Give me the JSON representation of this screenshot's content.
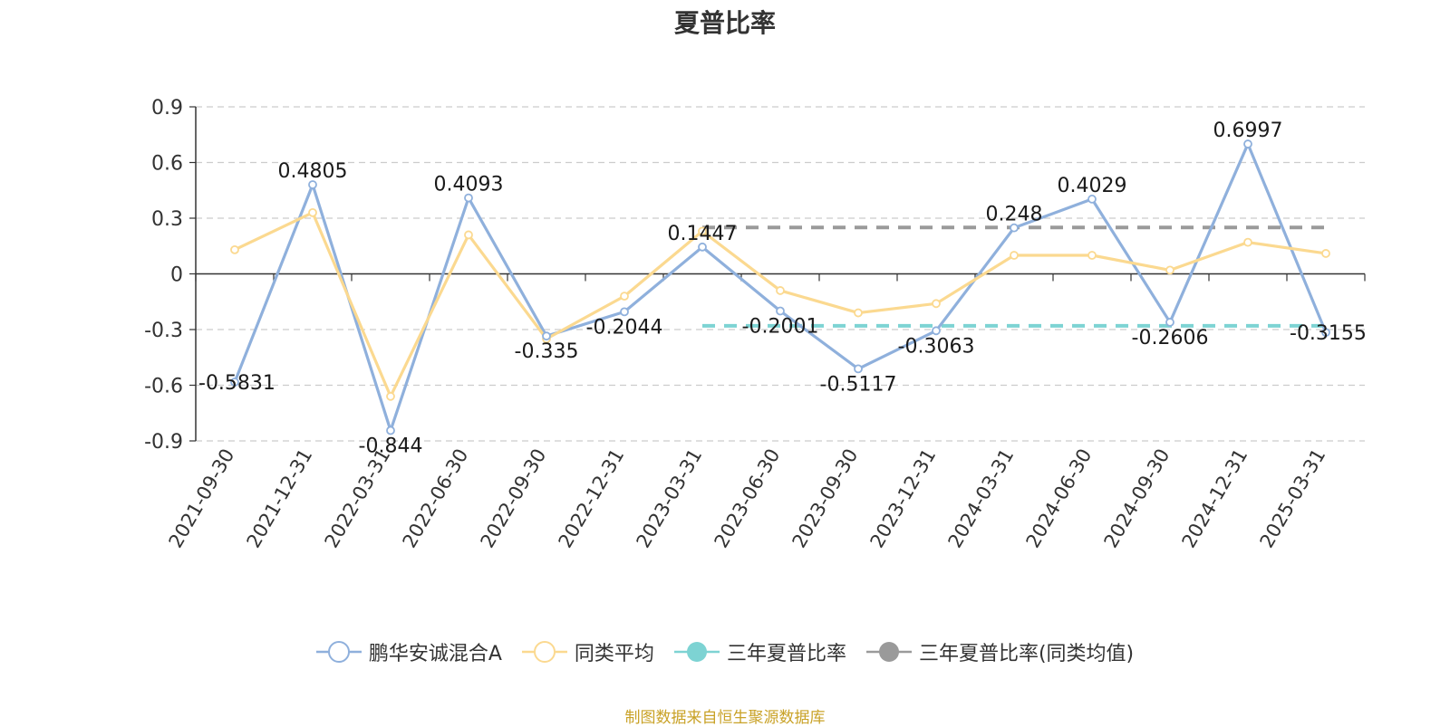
{
  "title": "夏普比率",
  "source_note": "制图数据来自恒生聚源数据库",
  "legend": [
    {
      "label": "鹏华安诚混合A",
      "color": "#8fb0dc",
      "marker": "hollow-circle"
    },
    {
      "label": "同类平均",
      "color": "#fbd990",
      "marker": "hollow-circle"
    },
    {
      "label": "三年夏普比率",
      "color": "#7dd3d3",
      "marker": "filled-circle"
    },
    {
      "label": "三年夏普比率(同类均值)",
      "color": "#9a9a9a",
      "marker": "filled-circle"
    }
  ],
  "chart_data": {
    "type": "line",
    "title": "夏普比率",
    "xlabel": "",
    "ylabel": "",
    "ylim": [
      -0.9,
      0.9
    ],
    "yticks": [
      "-0.9",
      "-0.6",
      "-0.3",
      "0",
      "0.3",
      "0.6",
      "0.9"
    ],
    "ytick_values": [
      -0.9,
      -0.6,
      -0.3,
      0,
      0.3,
      0.6,
      0.9
    ],
    "grid": true,
    "legend_position": "bottom",
    "categories": [
      "2021-09-30",
      "2021-12-31",
      "2022-03-31",
      "2022-06-30",
      "2022-09-30",
      "2022-12-31",
      "2023-03-31",
      "2023-06-30",
      "2023-09-30",
      "2023-12-31",
      "2024-03-31",
      "2024-06-30",
      "2024-09-30",
      "2024-12-31",
      "2025-03-31"
    ],
    "series": [
      {
        "name": "鹏华安诚混合A",
        "color": "#8fb0dc",
        "values": [
          -0.5831,
          0.4805,
          -0.844,
          0.4093,
          -0.335,
          -0.2044,
          0.1447,
          -0.2001,
          -0.5117,
          -0.3063,
          0.248,
          0.4029,
          -0.2606,
          0.6997,
          -0.3155
        ],
        "labels": [
          "-0.5831",
          "0.4805",
          "-0.844",
          "0.4093",
          "-0.335",
          "-0.2044",
          "0.1447",
          "-0.2001",
          "-0.5117",
          "-0.3063",
          "0.248",
          "0.4029",
          "-0.2606",
          "0.6997",
          "-0.3155"
        ]
      },
      {
        "name": "同类平均",
        "color": "#fbd990",
        "values": [
          0.13,
          0.33,
          -0.66,
          0.21,
          -0.35,
          -0.12,
          0.23,
          -0.09,
          -0.21,
          -0.16,
          0.1,
          0.1,
          0.02,
          0.17,
          0.11
        ]
      }
    ],
    "reference_lines": [
      {
        "name": "三年夏普比率",
        "color": "#7dd3d3",
        "value": -0.28,
        "from": "2023-03-31",
        "to": "2025-03-31",
        "style": "dashed"
      },
      {
        "name": "三年夏普比率(同类均值)",
        "color": "#9a9a9a",
        "value": 0.25,
        "from": "2023-03-31",
        "to": "2025-03-31",
        "style": "dashed"
      }
    ]
  }
}
